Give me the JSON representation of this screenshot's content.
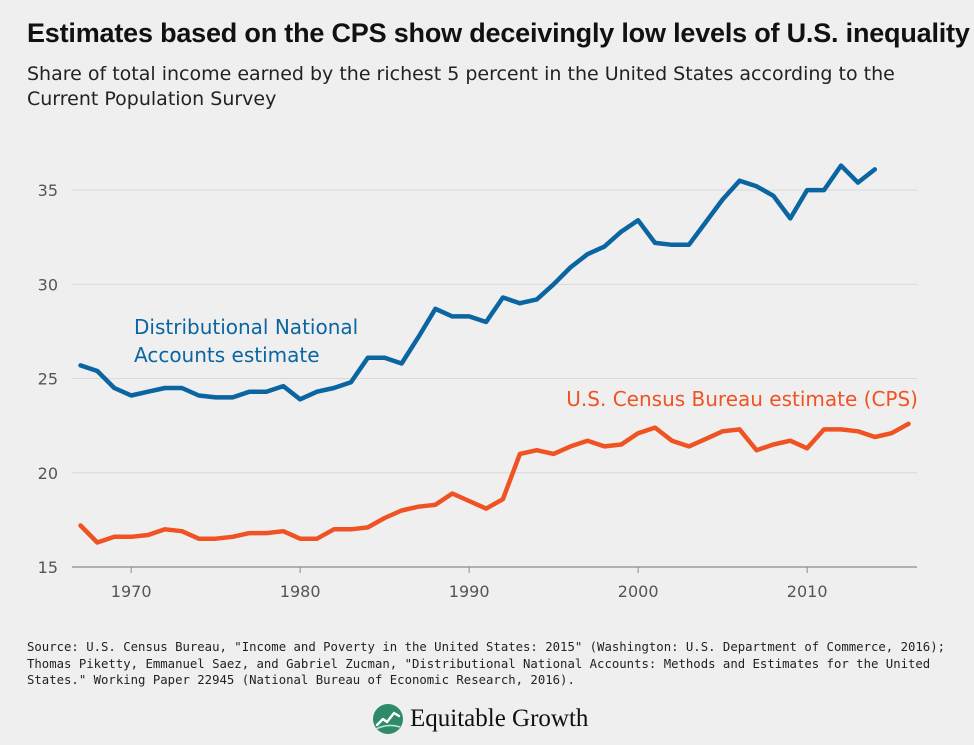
{
  "header": {
    "title": "Estimates based on the CPS show deceivingly low levels of U.S. inequality",
    "subtitle": "Share of total income earned by the richest 5 percent in the United States according to the Current Population Survey"
  },
  "footer": {
    "source": "Source: U.S. Census Bureau, \"Income and Poverty in the United States: 2015\" (Washington: U.S. Department of Commerce, 2016); Thomas Piketty, Emmanuel Saez, and Gabriel Zucman, \"Distributional National Accounts: Methods and Estimates for the United States.\" Working Paper 22945 (National Bureau of Economic Research, 2016).",
    "brand": "Equitable Growth"
  },
  "chart_data": {
    "type": "line",
    "title": "Estimates based on the CPS show deceivingly low levels of U.S. inequality",
    "subtitle": "Share of total income earned by the richest 5 percent in the United States according to the Current Population Survey",
    "xlabel": "",
    "ylabel": "",
    "xlim": [
      1966.5,
      2016.5
    ],
    "ylim": [
      15,
      37.5
    ],
    "xticks": [
      1970,
      1980,
      1990,
      2000,
      2010
    ],
    "yticks": [
      15,
      20,
      25,
      30,
      35
    ],
    "grid": "horizontal",
    "legend": "direct-labels",
    "series": [
      {
        "name": "Distributional National Accounts estimate",
        "label_lines": [
          "Distributional National",
          "Accounts estimate"
        ],
        "color": "#0a65a1",
        "x": [
          1967,
          1968,
          1969,
          1970,
          1971,
          1972,
          1973,
          1974,
          1975,
          1976,
          1977,
          1978,
          1979,
          1980,
          1981,
          1982,
          1983,
          1984,
          1985,
          1986,
          1987,
          1988,
          1989,
          1990,
          1991,
          1992,
          1993,
          1994,
          1995,
          1996,
          1997,
          1998,
          1999,
          2000,
          2001,
          2002,
          2003,
          2004,
          2005,
          2006,
          2007,
          2008,
          2009,
          2010,
          2011,
          2012,
          2013,
          2014
        ],
        "values": [
          25.7,
          25.4,
          24.5,
          24.1,
          24.3,
          24.5,
          24.5,
          24.1,
          24.0,
          24.0,
          24.3,
          24.3,
          24.6,
          23.9,
          24.3,
          24.5,
          24.8,
          26.1,
          26.1,
          25.8,
          27.2,
          28.7,
          28.3,
          28.3,
          28.0,
          29.3,
          29.0,
          29.2,
          30.0,
          30.9,
          31.6,
          32.0,
          32.8,
          33.4,
          32.2,
          32.1,
          32.1,
          33.3,
          34.5,
          35.5,
          35.2,
          34.7,
          33.5,
          35.0,
          35.0,
          36.3,
          35.4,
          36.1
        ]
      },
      {
        "name": "U.S. Census Bureau estimate (CPS)",
        "label_lines": [
          "U.S. Census Bureau estimate (CPS)"
        ],
        "color": "#f05323",
        "x": [
          1967,
          1968,
          1969,
          1970,
          1971,
          1972,
          1973,
          1974,
          1975,
          1976,
          1977,
          1978,
          1979,
          1980,
          1981,
          1982,
          1983,
          1984,
          1985,
          1986,
          1987,
          1988,
          1989,
          1990,
          1991,
          1992,
          1993,
          1994,
          1995,
          1996,
          1997,
          1998,
          1999,
          2000,
          2001,
          2002,
          2003,
          2004,
          2005,
          2006,
          2007,
          2008,
          2009,
          2010,
          2011,
          2012,
          2013,
          2014,
          2015,
          2016
        ],
        "values": [
          17.2,
          16.3,
          16.6,
          16.6,
          16.7,
          17.0,
          16.9,
          16.5,
          16.5,
          16.6,
          16.8,
          16.8,
          16.9,
          16.5,
          16.5,
          17.0,
          17.0,
          17.1,
          17.6,
          18.0,
          18.2,
          18.3,
          18.9,
          18.5,
          18.1,
          18.6,
          21.0,
          21.2,
          21.0,
          21.4,
          21.7,
          21.4,
          21.5,
          22.1,
          22.4,
          21.7,
          21.4,
          21.8,
          22.2,
          22.3,
          21.2,
          21.5,
          21.7,
          21.3,
          22.3,
          22.3,
          22.2,
          21.9,
          22.1,
          22.6
        ]
      }
    ]
  }
}
